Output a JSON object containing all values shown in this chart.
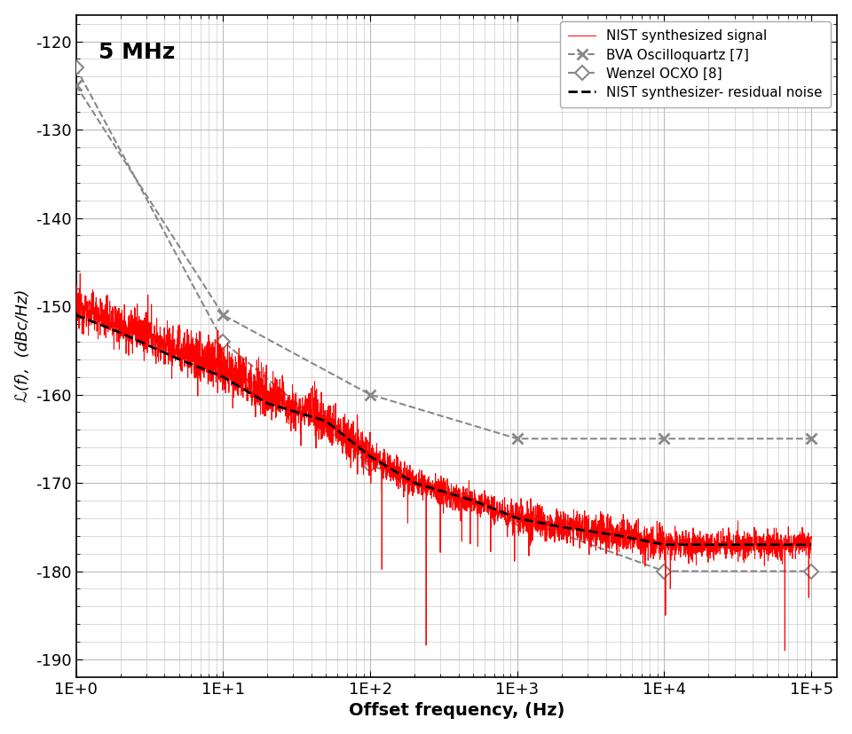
{
  "title": "5 MHz",
  "xlabel": "Offset frequency, (Hz)",
  "ylabel": "ℒ(f),  (dBc/Hz)",
  "xlim": [
    1,
    150000
  ],
  "ylim": [
    -192,
    -117
  ],
  "yticks": [
    -190,
    -180,
    -170,
    -160,
    -150,
    -140,
    -130,
    -120
  ],
  "background_color": "#ffffff",
  "grid_color": "#cccccc",
  "bva_x": [
    1,
    10,
    100,
    1000,
    10000,
    100000
  ],
  "bva_y": [
    -125,
    -151,
    -160,
    -165,
    -165,
    -165
  ],
  "wenzel_x": [
    1,
    10,
    100,
    1000,
    10000,
    100000
  ],
  "wenzel_y": [
    -123,
    -154,
    -168,
    -174,
    -180,
    -180
  ],
  "residual_x": [
    1,
    2,
    5,
    10,
    20,
    50,
    100,
    200,
    500,
    1000,
    2000,
    5000,
    10000,
    20000,
    50000,
    100000
  ],
  "residual_y": [
    -151,
    -153,
    -156,
    -158,
    -161,
    -163,
    -167,
    -170,
    -172,
    -174,
    -175,
    -176,
    -177,
    -177,
    -177,
    -177
  ],
  "base_noise_x": [
    1,
    2,
    5,
    10,
    20,
    50,
    100,
    200,
    500,
    1000,
    2000,
    5000,
    10000,
    20000,
    50000,
    100000
  ],
  "base_noise_y": [
    -150,
    -152,
    -155,
    -157,
    -160,
    -163,
    -167,
    -170,
    -172,
    -174,
    -175,
    -176,
    -177,
    -177,
    -177,
    -177
  ],
  "spur_freqs": [
    120,
    180,
    240,
    300,
    420,
    480,
    540,
    660,
    960,
    1200,
    10200,
    11000,
    66000,
    96000
  ],
  "spur_depths": [
    12,
    5,
    18,
    7,
    5,
    5,
    5,
    5,
    5,
    4,
    8,
    5,
    12,
    6
  ],
  "nist_color": "#ff0000",
  "bva_color": "#888888",
  "wenzel_color": "#888888",
  "residual_color": "#000000",
  "legend_labels": [
    "NIST synthesized signal",
    "BVA Oscilloquartz [7]",
    "Wenzel OCXO [8]",
    "NIST synthesizer- residual noise"
  ]
}
